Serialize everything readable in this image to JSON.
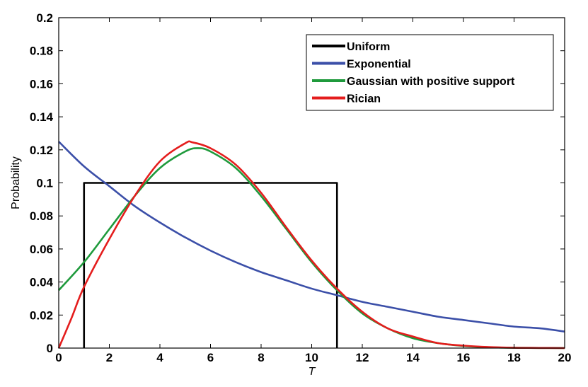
{
  "chart_data": {
    "type": "line",
    "title": "",
    "xlabel": "T",
    "ylabel": "Probability",
    "xlim": [
      0,
      20
    ],
    "ylim": [
      0,
      0.2
    ],
    "xticks": [
      0,
      2,
      4,
      6,
      8,
      10,
      12,
      14,
      16,
      18,
      20
    ],
    "yticks": [
      0,
      0.02,
      0.04,
      0.06,
      0.08,
      0.1,
      0.12,
      0.14,
      0.16,
      0.18,
      0.2
    ],
    "xtick_labels": [
      "0",
      "2",
      "4",
      "6",
      "8",
      "10",
      "12",
      "14",
      "16",
      "18",
      "20"
    ],
    "ytick_labels": [
      "0",
      "0.02",
      "0.04",
      "0.06",
      "0.08",
      "0.1",
      "0.12",
      "0.14",
      "0.16",
      "0.18",
      "0.2"
    ],
    "grid": false,
    "legend_position": "top-right",
    "series": [
      {
        "name": "Uniform",
        "color": "#000000",
        "x": [
          1,
          1,
          11,
          11
        ],
        "y": [
          0,
          0.1,
          0.1,
          0
        ]
      },
      {
        "name": "Exponential",
        "color": "#3b4fa8",
        "x": [
          0,
          1,
          2,
          3,
          4,
          5,
          6,
          7,
          8,
          9,
          10,
          11,
          12,
          13,
          14,
          15,
          16,
          17,
          18,
          19,
          20
        ],
        "y": [
          0.125,
          0.11,
          0.098,
          0.086,
          0.076,
          0.067,
          0.059,
          0.052,
          0.046,
          0.041,
          0.036,
          0.032,
          0.028,
          0.025,
          0.022,
          0.019,
          0.017,
          0.015,
          0.013,
          0.012,
          0.01
        ]
      },
      {
        "name": "Gaussian with positive support",
        "color": "#1f9a3c",
        "x": [
          0,
          1,
          2,
          3,
          4,
          5,
          5.5,
          6,
          7,
          8,
          9,
          10,
          11,
          12,
          13,
          14,
          15,
          16,
          17,
          18,
          19,
          20
        ],
        "y": [
          0.035,
          0.052,
          0.072,
          0.092,
          0.109,
          0.119,
          0.121,
          0.119,
          0.109,
          0.092,
          0.072,
          0.052,
          0.035,
          0.021,
          0.012,
          0.006,
          0.003,
          0.0013,
          0.0005,
          0.0002,
          0.0001,
          0.0
        ]
      },
      {
        "name": "Rician",
        "color": "#e41d1d",
        "x": [
          0,
          0.5,
          1,
          2,
          3,
          4,
          5,
          5.3,
          6,
          7,
          8,
          9,
          10,
          11,
          12,
          13,
          14,
          15,
          16,
          17,
          18,
          19,
          20
        ],
        "y": [
          0.0,
          0.018,
          0.037,
          0.066,
          0.092,
          0.113,
          0.124,
          0.1245,
          0.121,
          0.111,
          0.094,
          0.073,
          0.053,
          0.036,
          0.022,
          0.012,
          0.007,
          0.003,
          0.0015,
          0.0006,
          0.0002,
          0.0001,
          0.0
        ]
      }
    ]
  }
}
